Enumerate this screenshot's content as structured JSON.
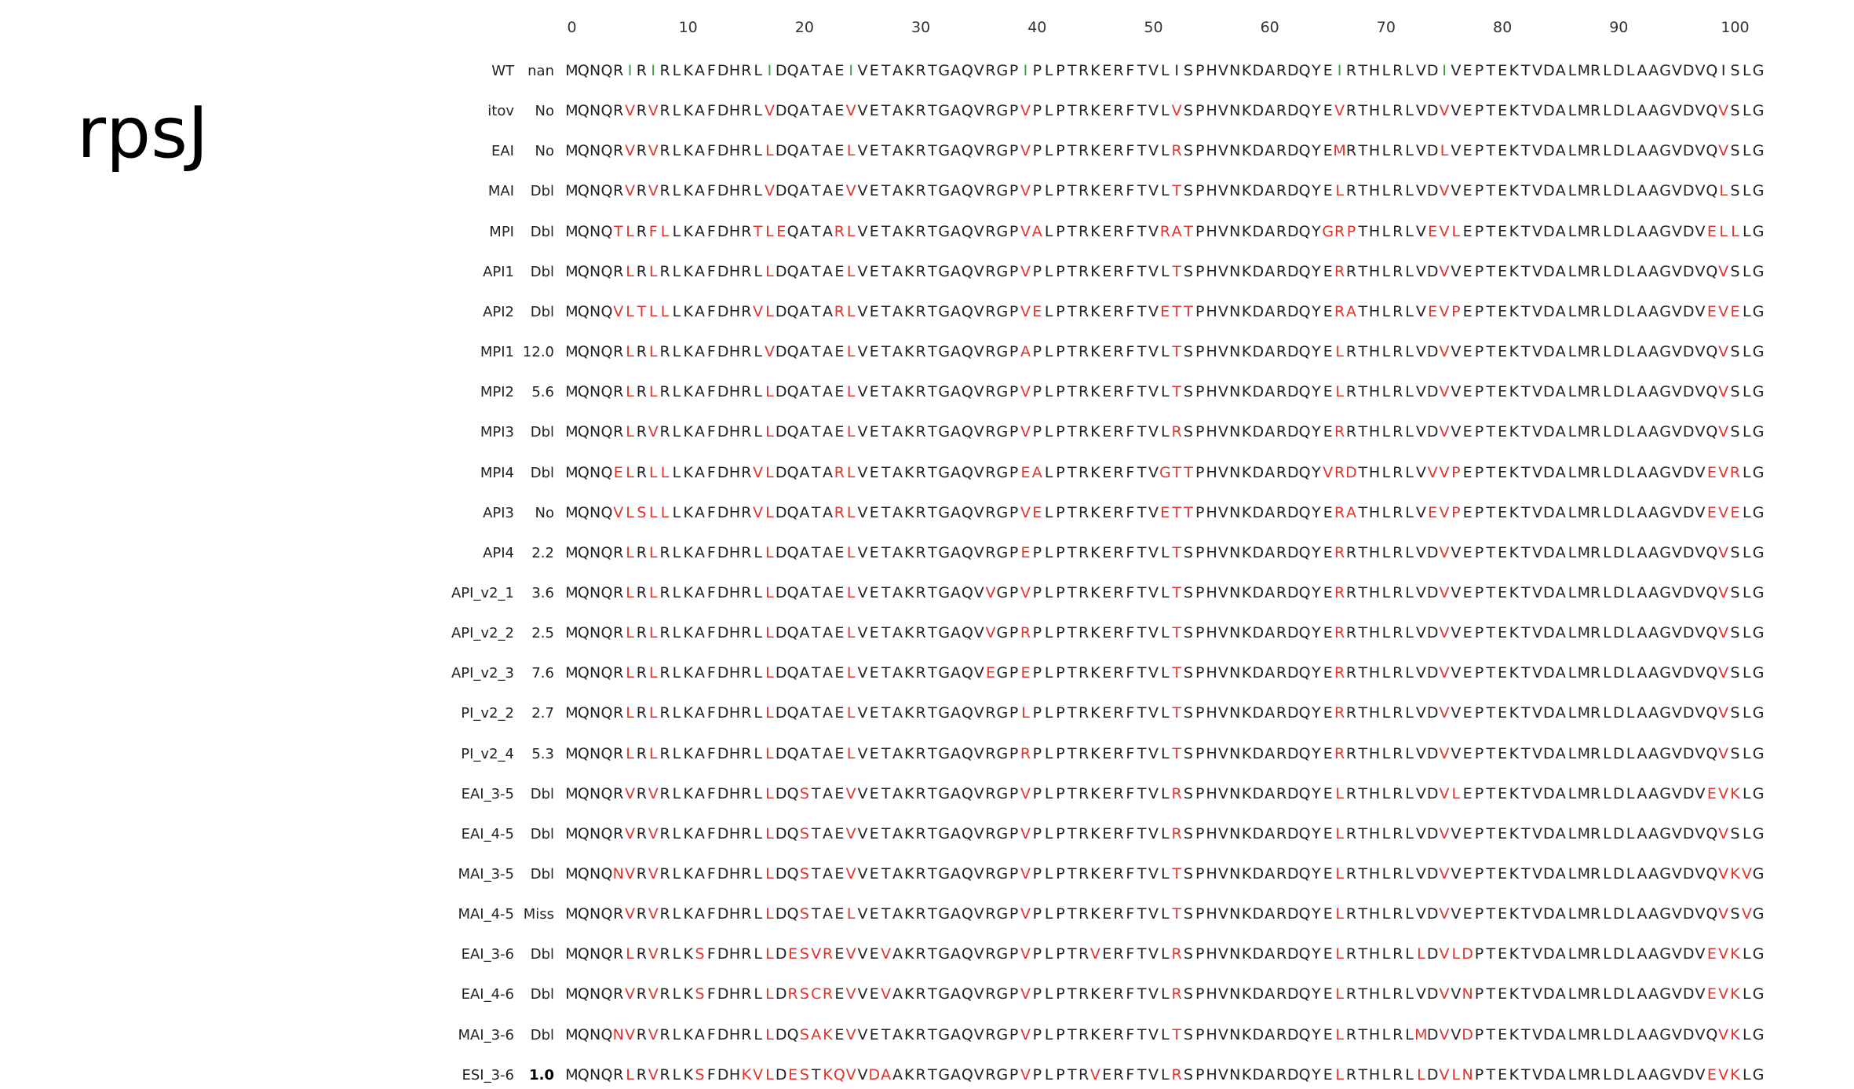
{
  "title": "rpsJ",
  "ruler": {
    "ticks": [
      0,
      10,
      20,
      30,
      40,
      50,
      60,
      70,
      80,
      90,
      100
    ]
  },
  "colors": {
    "mutation": "#e0332b",
    "wildtype_variable": "#3f9b3f",
    "text": "#222222"
  },
  "sequences": [
    {
      "name": "WT",
      "label": "nan",
      "seq": "MQNQRIRIRLKAFDHRLIDQATAEIVETAKRTGAQVRGPIPLPTRKERFTVLISPHVNKDARDQYEIRTHLRLVDIVEPTEKTVDALMRLDLAAGVDVQISLG"
    },
    {
      "name": "itov",
      "label": "No",
      "seq": "MQNQRVRVRLKAFDHRLVDQATAEVVETAKRTGAQVRGPVPLPTRKERFTVLVSPHVNKDARDQYEVRTHLRLVDVVEPTEKTVDALMRLDLAAGVDVQVSLG"
    },
    {
      "name": "EAI",
      "label": "No",
      "seq": "MQNQRVRVRLKAFDHRLLDQATAELVETAKRTGAQVRGPVPLPTRKERFTVLRSPHVNKDARDQYEMRTHLRLVDLVEPTEKTVDALMRLDLAAGVDVQVSLG"
    },
    {
      "name": "MAI",
      "label": "Dbl",
      "seq": "MQNQRVRVRLKAFDHRLVDQATAEVVETAKRTGAQVRGPVPLPTRKERFTVLTSPHVNKDARDQYELRTHLRLVDVVEPTEKTVDALMRLDLAAGVDVQLSLG"
    },
    {
      "name": "MPI",
      "label": "Dbl",
      "seq": "MQNQTLRFLLKAFDHRTLEQATARLVETAKRTGAQVRGPVALPTRKERFTVRATPHVNKDARDQYGRPTHLRLVEVLEPTEKTVDALMRLDLAAGVDVELLLG"
    },
    {
      "name": "API1",
      "label": "Dbl",
      "seq": "MQNQRLRLRLKAFDHRLLDQATAELVETAKRTGAQVRGPVPLPTRKERFTVLTSPHVNKDARDQYERRTHLRLVDVVEPTEKTVDALMRLDLAAGVDVQVSLG"
    },
    {
      "name": "API2",
      "label": "Dbl",
      "seq": "MQNQVLTLLLKAFDHRVLDQATARLVETAKRTGAQVRGPVELPTRKERFTVETTPHVNKDARDQYERATHLRLVEVPEPTEKTVDALMRLDLAAGVDVEVELG"
    },
    {
      "name": "MPI1",
      "label": "12.0",
      "seq": "MQNQRLRLRLKAFDHRLVDQATAELVETAKRTGAQVRGPAPLPTRKERFTVLTSPHVNKDARDQYELRTHLRLVDVVEPTEKTVDALMRLDLAAGVDVQVSLG"
    },
    {
      "name": "MPI2",
      "label": "5.6",
      "seq": "MQNQRLRLRLKAFDHRLLDQATAELVETAKRTGAQVRGPVPLPTRKERFTVLTSPHVNKDARDQYELRTHLRLVDVVEPTEKTVDALMRLDLAAGVDVQVSLG"
    },
    {
      "name": "MPI3",
      "label": "Dbl",
      "seq": "MQNQRLRVRLKAFDHRLLDQATAELVETAKRTGAQVRGPVPLPTRKERFTVLRSPHVNKDARDQYERRTHLRLVDVVEPTEKTVDALMRLDLAAGVDVQVSLG"
    },
    {
      "name": "MPI4",
      "label": "Dbl",
      "seq": "MQNQELRLLLKAFDHRVLDQATARLVETAKRTGAQVRGPEALPTRKERFTVGTTPHVNKDARDQYVRDTHLRLVVVPEPTEKTVDALMRLDLAAGVDVEVRLG"
    },
    {
      "name": "API3",
      "label": "No",
      "seq": "MQNQVLSLLLKAFDHRVLDQATARLVETAKRTGAQVRGPVELPTRKERFTVETTPHVNKDARDQYERATHLRLVEVPEPTEKTVDALMRLDLAAGVDVEVELG"
    },
    {
      "name": "API4",
      "label": "2.2",
      "seq": "MQNQRLRLRLKAFDHRLLDQATAELVETAKRTGAQVRGPEPLPTRKERFTVLTSPHVNKDARDQYERRTHLRLVDVVEPTEKTVDALMRLDLAAGVDVQVSLG"
    },
    {
      "name": "API_v2_1",
      "label": "3.6",
      "seq": "MQNQRLRLRLKAFDHRLLDQATAELVETAKRTGAQVVGPVPLPTRKERFTVLTSPHVNKDARDQYERRTHLRLVDVVEPTEKTVDALMRLDLAAGVDVQVSLG"
    },
    {
      "name": "API_v2_2",
      "label": "2.5",
      "seq": "MQNQRLRLRLKAFDHRLLDQATAELVETAKRTGAQVVGPRPLPTRKERFTVLTSPHVNKDARDQYERRTHLRLVDVVEPTEKTVDALMRLDLAAGVDVQVSLG"
    },
    {
      "name": "API_v2_3",
      "label": "7.6",
      "seq": "MQNQRLRLRLKAFDHRLLDQATAELVETAKRTGAQVEGPEPLPTRKERFTVLTSPHVNKDARDQYERRTHLRLVDVVEPTEKTVDALMRLDLAAGVDVQVSLG"
    },
    {
      "name": "PI_v2_2",
      "label": "2.7",
      "seq": "MQNQRLRLRLKAFDHRLLDQATAELVETAKRTGAQVRGPLPLPTRKERFTVLTSPHVNKDARDQYERRTHLRLVDVVEPTEKTVDALMRLDLAAGVDVQVSLG"
    },
    {
      "name": "PI_v2_4",
      "label": "5.3",
      "seq": "MQNQRLRLRLKAFDHRLLDQATAELVETAKRTGAQVRGPRPLPTRKERFTVLTSPHVNKDARDQYERRTHLRLVDVVEPTEKTVDALMRLDLAAGVDVQVSLG"
    },
    {
      "name": "EAI_3-5",
      "label": "Dbl",
      "seq": "MQNQRVRVRLKAFDHRLLDQSTAEVVETAKRTGAQVRGPVPLPTRKERFTVLRSPHVNKDARDQYELRTHLRLVDVLEPTEKTVDALMRLDLAAGVDVEVKLG"
    },
    {
      "name": "EAI_4-5",
      "label": "Dbl",
      "seq": "MQNQRVRVRLKAFDHRLLDQSTAEVVETAKRTGAQVRGPVPLPTRKERFTVLRSPHVNKDARDQYELRTHLRLVDVVEPTEKTVDALMRLDLAAGVDVQVSLG"
    },
    {
      "name": "MAI_3-5",
      "label": "Dbl",
      "seq": "MQNQNVRVRLKAFDHRLLDQSTAEVVETAKRTGAQVRGPVPLPTRKERFTVLTSPHVNKDARDQYELRTHLRLVDVVEPTEKTVDALMRLDLAAGVDVQVKVG"
    },
    {
      "name": "MAI_4-5",
      "label": "Miss",
      "seq": "MQNQRVRVRLKAFDHRLLDQSTAELVETAKRTGAQVRGPVPLPTRKERFTVLTSPHVNKDARDQYELRTHLRLVDVVEPTEKTVDALMRLDLAAGVDVQVSVG"
    },
    {
      "name": "EAI_3-6",
      "label": "Dbl",
      "seq": "MQNQRLRVRLKSFDHRLLDESVREVVEVAKRTGAQVRGPVPLPTRVERFTVLRSPHVNKDARDQYELRTHLRLLDVLDPTEKTVDALMRLDLAAGVDVEVKLG"
    },
    {
      "name": "EAI_4-6",
      "label": "Dbl",
      "seq": "MQNQRVRVRLKSFDHRLLDRSCREVVEVAKRTGAQVRGPVPLPTRKERFTVLRSPHVNKDARDQYELRTHLRLVDVVNPTEKTVDALMRLDLAAGVDVEVKLG"
    },
    {
      "name": "MAI_3-6",
      "label": "Dbl",
      "seq": "MQNQNVRVRLKAFDHRLLDQSAKEVVETAKRTGAQVRGPVPLPTRKERFTVLTSPHVNKDARDQYELRTHLRLMDVVDPTEKTVDALMRLDLAAGVDVQVKLG"
    },
    {
      "name": "ESI_3-6",
      "label": "1.0",
      "bold": true,
      "seq": "MQNQRLRVRLKSFDHKVLDESTKQVVDAAKRTGAQVRGPVPLPTRVERFTVLRSPHVNKDARDQYELRTHLRLLDVLNPTEKTVDALMRLDLAAGVDVEVKLG"
    }
  ]
}
